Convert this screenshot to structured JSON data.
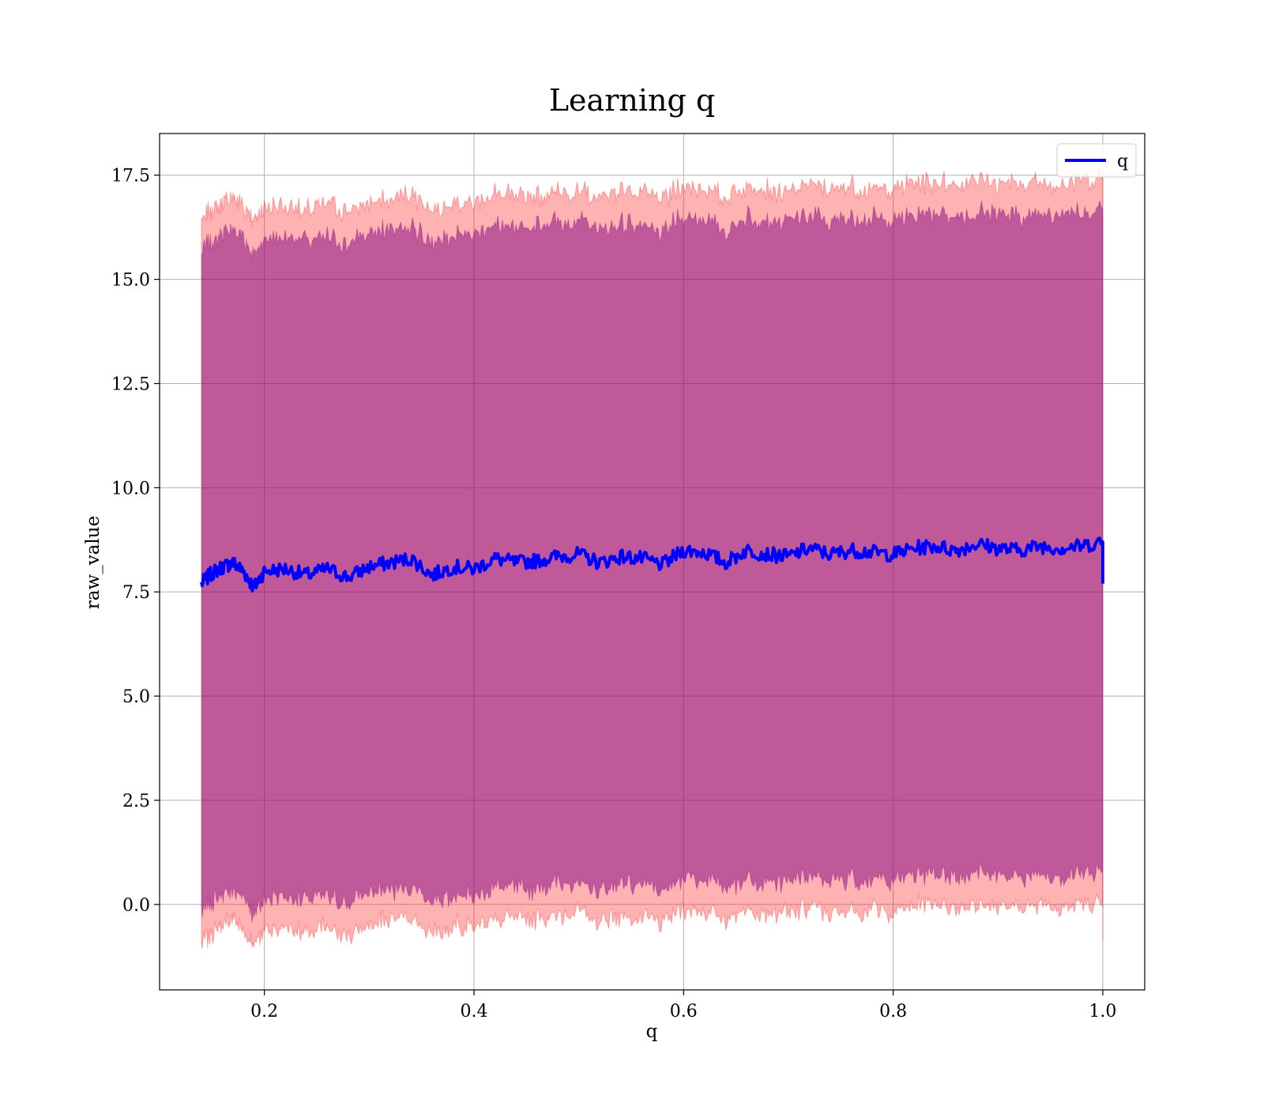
{
  "chart_data": {
    "type": "area",
    "title": "Learning q",
    "xlabel": "q",
    "ylabel": "raw_value",
    "xlim": [
      0.1,
      1.04
    ],
    "ylim": [
      -2.05,
      18.5
    ],
    "xticks": [
      0.2,
      0.4,
      0.6,
      0.8,
      1.0
    ],
    "xtick_labels": [
      "0.2",
      "0.4",
      "0.6",
      "0.8",
      "1.0"
    ],
    "yticks": [
      0.0,
      2.5,
      5.0,
      7.5,
      10.0,
      12.5,
      15.0,
      17.5
    ],
    "ytick_labels": [
      "0.0",
      "2.5",
      "5.0",
      "7.5",
      "10.0",
      "12.5",
      "15.0",
      "17.5"
    ],
    "grid": true,
    "legend": {
      "position": "top-right",
      "entries": [
        "q"
      ]
    },
    "colors": {
      "line": "#0000ff",
      "band_outer": "#ff0000",
      "band_inner": "#800080",
      "grid": "#b0b0b0"
    },
    "series": [
      {
        "name": "q",
        "x": [
          0.14,
          0.15,
          0.16,
          0.17,
          0.18,
          0.19,
          0.2,
          0.22,
          0.24,
          0.26,
          0.28,
          0.3,
          0.32,
          0.34,
          0.36,
          0.38,
          0.4,
          0.42,
          0.44,
          0.46,
          0.48,
          0.5,
          0.52,
          0.54,
          0.56,
          0.58,
          0.6,
          0.62,
          0.64,
          0.66,
          0.68,
          0.7,
          0.72,
          0.74,
          0.76,
          0.78,
          0.8,
          0.82,
          0.84,
          0.86,
          0.88,
          0.9,
          0.92,
          0.94,
          0.96,
          0.98,
          1.0
        ],
        "y": [
          7.7,
          7.95,
          8.1,
          8.2,
          8.0,
          7.6,
          8.0,
          8.05,
          7.9,
          8.05,
          7.85,
          8.1,
          8.2,
          8.3,
          7.9,
          8.1,
          8.05,
          8.3,
          8.2,
          8.25,
          8.35,
          8.4,
          8.2,
          8.35,
          8.3,
          8.15,
          8.5,
          8.45,
          8.2,
          8.5,
          8.4,
          8.35,
          8.55,
          8.4,
          8.5,
          8.45,
          8.4,
          8.55,
          8.6,
          8.5,
          8.65,
          8.55,
          8.5,
          8.6,
          8.55,
          8.6,
          8.7
        ],
        "band_outer": {
          "upper_offset": 8.75,
          "lower_offset": -8.6
        },
        "band_inner": {
          "upper_offset": 8.0,
          "lower_offset": -7.85
        }
      }
    ]
  }
}
